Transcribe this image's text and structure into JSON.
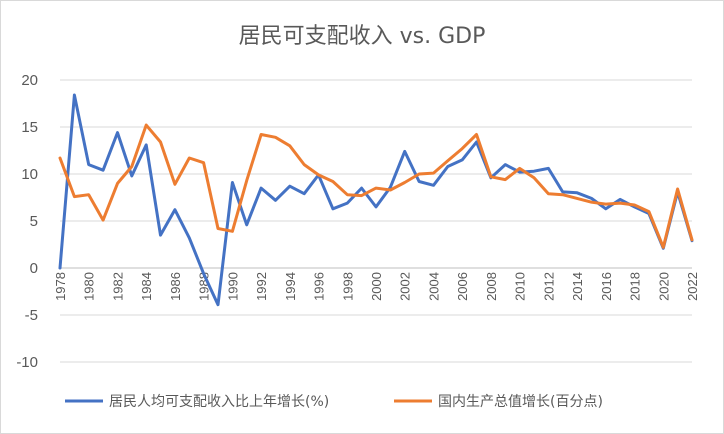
{
  "chart_data": {
    "type": "line",
    "title": "居民可支配收入 vs. GDP",
    "xlabel": "",
    "ylabel": "",
    "ylim": [
      -10,
      20
    ],
    "yticks": [
      -10,
      -5,
      0,
      5,
      10,
      15,
      20
    ],
    "grid": true,
    "legend_position": "bottom",
    "x": [
      1978,
      1979,
      1980,
      1981,
      1982,
      1983,
      1984,
      1985,
      1986,
      1987,
      1988,
      1989,
      1990,
      1991,
      1992,
      1993,
      1994,
      1995,
      1996,
      1997,
      1998,
      1999,
      2000,
      2001,
      2002,
      2003,
      2004,
      2005,
      2006,
      2007,
      2008,
      2009,
      2010,
      2011,
      2012,
      2013,
      2014,
      2015,
      2016,
      2017,
      2018,
      2019,
      2020,
      2021,
      2022
    ],
    "xtick_labels": [
      "1978",
      "1980",
      "1982",
      "1984",
      "1986",
      "1988",
      "1990",
      "1992",
      "1994",
      "1996",
      "1998",
      "2000",
      "2002",
      "2004",
      "2006",
      "2008",
      "2010",
      "2012",
      "2014",
      "2016",
      "2018",
      "2020",
      "2022"
    ],
    "series": [
      {
        "name": "居民人均可支配收入比上年增长(%)",
        "color": "#4472c4",
        "values": [
          0,
          18.4,
          11,
          10.4,
          14.4,
          9.8,
          13.1,
          3.5,
          6.2,
          3.2,
          -0.6,
          -3.9,
          9.1,
          4.6,
          8.5,
          7.2,
          8.7,
          7.9,
          9.9,
          6.3,
          6.9,
          8.5,
          6.5,
          8.6,
          12.4,
          9.2,
          8.8,
          10.8,
          11.5,
          13.4,
          9.6,
          11,
          10.2,
          10.3,
          10.6,
          8.1,
          8,
          7.4,
          6.3,
          7.3,
          6.5,
          5.8,
          2.1,
          8.1,
          2.9
        ]
      },
      {
        "name": "国内生产总值增长(百分点)",
        "color": "#ed7d31",
        "values": [
          11.7,
          7.6,
          7.8,
          5.1,
          9,
          10.8,
          15.2,
          13.4,
          8.9,
          11.7,
          11.2,
          4.2,
          3.9,
          9.3,
          14.2,
          13.9,
          13,
          11,
          9.9,
          9.2,
          7.8,
          7.7,
          8.5,
          8.3,
          9.1,
          10,
          10.1,
          11.4,
          12.7,
          14.2,
          9.7,
          9.4,
          10.6,
          9.6,
          7.9,
          7.8,
          7.4,
          7,
          6.8,
          6.9,
          6.7,
          6,
          2.2,
          8.4,
          3
        ]
      }
    ]
  }
}
